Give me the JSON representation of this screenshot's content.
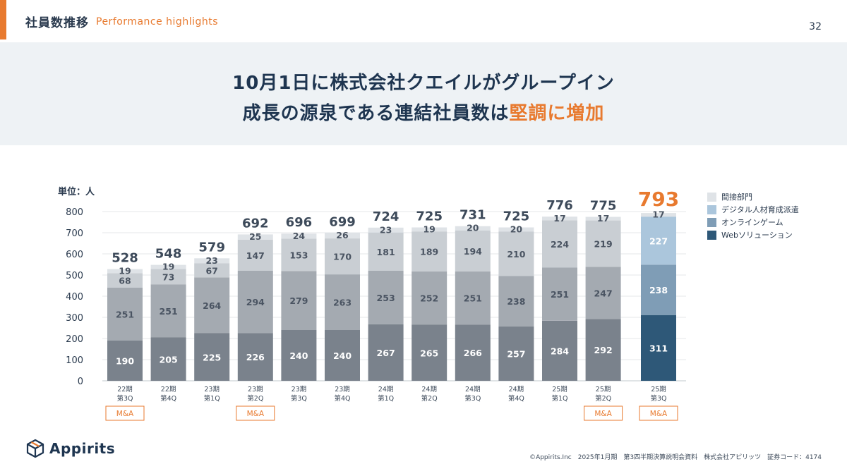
{
  "header": {
    "title": "社員数推移",
    "subtitle": "Performance highlights",
    "page_number": "32"
  },
  "banner": {
    "line1": "10月1日に株式会社クエイルがグループイン",
    "line2_prefix": "成長の源泉である連結社員数は",
    "line2_highlight": "堅調に増加"
  },
  "colors": {
    "accent": "#e87a2f",
    "navy": "#1e3550",
    "banner_bg": "#eef2f5"
  },
  "chart_data": {
    "type": "bar",
    "stacked": true,
    "unit_label": "単位：人",
    "ylim": [
      0,
      800
    ],
    "yticks": [
      0,
      100,
      200,
      300,
      400,
      500,
      600,
      700,
      800
    ],
    "categories": [
      [
        "22期",
        "第3Q"
      ],
      [
        "22期",
        "第4Q"
      ],
      [
        "23期",
        "第1Q"
      ],
      [
        "23期",
        "第2Q"
      ],
      [
        "23期",
        "第3Q"
      ],
      [
        "23期",
        "第4Q"
      ],
      [
        "24期",
        "第1Q"
      ],
      [
        "24期",
        "第2Q"
      ],
      [
        "24期",
        "第3Q"
      ],
      [
        "24期",
        "第4Q"
      ],
      [
        "25期",
        "第1Q"
      ],
      [
        "25期",
        "第2Q"
      ],
      [
        "25期",
        "第3Q"
      ]
    ],
    "series": [
      {
        "name": "Webソリューション",
        "values": [
          190,
          205,
          225,
          226,
          240,
          240,
          267,
          265,
          266,
          257,
          284,
          292,
          311
        ]
      },
      {
        "name": "オンラインゲーム",
        "values": [
          251,
          251,
          264,
          294,
          279,
          263,
          253,
          252,
          251,
          238,
          251,
          247,
          238
        ]
      },
      {
        "name": "デジタル人材育成派遣",
        "values": [
          68,
          73,
          67,
          147,
          153,
          170,
          181,
          189,
          194,
          210,
          224,
          219,
          227
        ]
      },
      {
        "name": "間接部門",
        "values": [
          19,
          19,
          23,
          25,
          24,
          26,
          23,
          19,
          20,
          20,
          17,
          17,
          17
        ]
      }
    ],
    "totals": [
      528,
      548,
      579,
      692,
      696,
      699,
      724,
      725,
      731,
      725,
      776,
      775,
      793
    ],
    "legend_order": [
      "間接部門",
      "デジタル人材育成派遣",
      "オンラインゲーム",
      "Webソリューション"
    ],
    "colors_muted": [
      "#7a828c",
      "#a4aab1",
      "#c9ced3",
      "#dfe3e7"
    ],
    "colors_highlight": [
      "#2e5878",
      "#7f9db6",
      "#abc6dc",
      "#dfe3e7"
    ],
    "legend_colors": [
      "#dfe3e7",
      "#abc6dc",
      "#7f9db6",
      "#2e5878"
    ],
    "annotations": [
      {
        "category_index": 0,
        "text": "M&A"
      },
      {
        "category_index": 3,
        "text": "M&A"
      },
      {
        "category_index": 11,
        "text": "M&A"
      },
      {
        "category_index": 12,
        "text": "M&A"
      }
    ]
  },
  "footer": {
    "logo_text": "Appirits",
    "copyright": "©Appirits.Inc　2025年1月期　第3四半期決算説明会資料　株式会社アピリッツ　証券コード：4174"
  }
}
